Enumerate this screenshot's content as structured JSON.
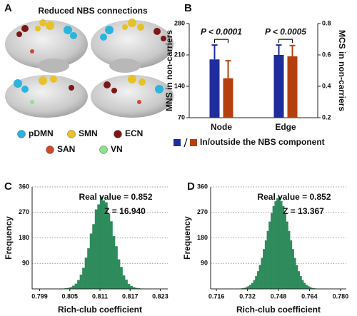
{
  "chart_data": [
    {
      "type": "brain",
      "panel": "A",
      "title": "Reduced NBS connections",
      "legend": [
        {
          "name": "pDMN",
          "color": "#2bb4de"
        },
        {
          "name": "SMN",
          "color": "#e6c228"
        },
        {
          "name": "ECN",
          "color": "#7d1717"
        },
        {
          "name": "SAN",
          "color": "#cc4a2a"
        },
        {
          "name": "VN",
          "color": "#8fe08f"
        }
      ]
    },
    {
      "type": "bar",
      "panel": "B",
      "categories": [
        "Node",
        "Edge"
      ],
      "category_axes": [
        "y",
        "y2"
      ],
      "series": [
        {
          "color": "#1f2d9c",
          "values": [
            200,
            0.6
          ],
          "errors": [
            32,
            0.063
          ]
        },
        {
          "color": "#b5400f",
          "values": [
            158,
            0.591
          ],
          "errors": [
            39,
            0.069
          ]
        }
      ],
      "ylabel": "MNS in non-carriers",
      "y2label": "MCS in non-carriers",
      "ylim": [
        70,
        280
      ],
      "yticks": [
        70,
        140,
        210,
        280
      ],
      "y2lim": [
        0.2,
        0.8
      ],
      "y2ticks": [
        0.2,
        0.4,
        0.6,
        0.8
      ],
      "legend_label": "In/outside the NBS component",
      "annotations": [
        "P < 0.0001",
        "P < 0.0005"
      ],
      "grid": false
    },
    {
      "type": "histogram",
      "panel": "C",
      "color": "#2e8b5c",
      "bins": [
        0.8015,
        0.802,
        0.8025,
        0.803,
        0.8035,
        0.804,
        0.8045,
        0.805,
        0.8055,
        0.806,
        0.8065,
        0.807,
        0.8075,
        0.808,
        0.8085,
        0.809,
        0.8095,
        0.81,
        0.8105,
        0.811,
        0.8115,
        0.812,
        0.8125,
        0.813,
        0.8135,
        0.814,
        0.8145,
        0.815,
        0.8155,
        0.816,
        0.8165,
        0.817,
        0.8175,
        0.818,
        0.8185,
        0.819,
        0.8195,
        0.82,
        0.8205,
        0.821,
        0.8215
      ],
      "values": [
        0,
        0,
        0,
        1,
        1,
        2,
        3,
        6,
        11,
        18,
        31,
        50,
        74,
        110,
        143,
        195,
        228,
        280,
        298,
        325,
        312,
        305,
        265,
        238,
        186,
        150,
        104,
        77,
        47,
        32,
        17,
        10,
        6,
        3,
        2,
        1,
        1,
        0,
        0,
        0
      ],
      "xlim": [
        0.7975,
        0.8245
      ],
      "xticks": [
        0.799,
        0.805,
        0.811,
        0.817,
        0.823
      ],
      "ylim": [
        0,
        360
      ],
      "yticks": [
        90,
        180,
        270,
        360
      ],
      "xlabel": "Rich-club coefficient",
      "ylabel": "Frequency",
      "annotations": [
        "Real value = 0.852",
        "Z = 16.940"
      ],
      "grid": true
    },
    {
      "type": "histogram",
      "panel": "D",
      "color": "#2e8b5c",
      "bins": [
        0.728,
        0.729,
        0.73,
        0.731,
        0.732,
        0.733,
        0.734,
        0.735,
        0.736,
        0.737,
        0.738,
        0.739,
        0.74,
        0.741,
        0.742,
        0.743,
        0.744,
        0.745,
        0.746,
        0.747,
        0.748,
        0.749,
        0.75,
        0.751,
        0.752,
        0.753,
        0.754,
        0.755,
        0.756,
        0.757,
        0.758,
        0.759,
        0.76,
        0.761,
        0.762,
        0.763,
        0.764,
        0.765,
        0.766,
        0.767,
        0.768
      ],
      "values": [
        1,
        2,
        3,
        6,
        9,
        14,
        21,
        31,
        45,
        62,
        84,
        109,
        140,
        171,
        204,
        237,
        267,
        292,
        309,
        319,
        325,
        309,
        292,
        267,
        237,
        204,
        171,
        140,
        109,
        84,
        62,
        45,
        31,
        21,
        14,
        9,
        6,
        3,
        2,
        1
      ],
      "xlim": [
        0.713,
        0.783
      ],
      "xticks": [
        0.716,
        0.732,
        0.748,
        0.764,
        {
          "value": 0.78,
          "label": "0.780"
        }
      ],
      "ylim": [
        0,
        360
      ],
      "yticks": [
        90,
        180,
        270,
        360
      ],
      "xlabel": "Rich-club coefficient",
      "ylabel": "Frequency",
      "annotations": [
        "Real value = 0.852",
        "Z = 13.367"
      ],
      "grid": true
    }
  ]
}
